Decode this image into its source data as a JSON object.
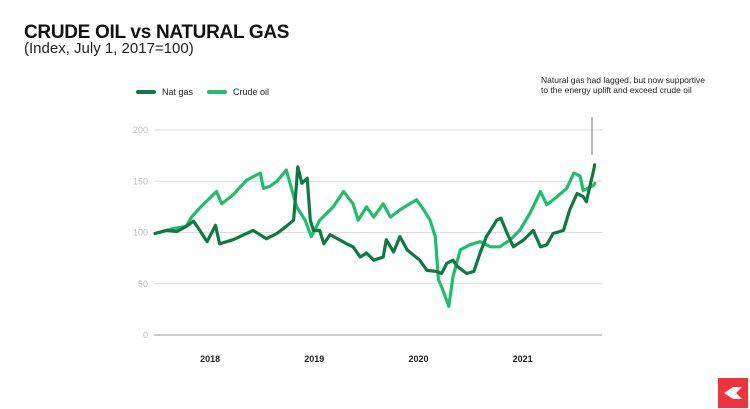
{
  "title": "CRUDE OIL vs NATURAL GAS",
  "subtitle": "(Index, July 1, 2017=100)",
  "annotation": "Natural gas had lagged, but now supportive to the energy uplift and exceed crude oil",
  "chart_data": {
    "type": "line",
    "title": "CRUDE OIL vs NATURAL GAS",
    "subtitle": "(Index, July 1, 2017=100)",
    "xlabel": "",
    "ylabel": "",
    "xlim": [
      2017.5,
      2021.8
    ],
    "ylim": [
      0,
      200
    ],
    "yticks": [
      0,
      50,
      100,
      150,
      200
    ],
    "xticks": [
      {
        "value": 2018,
        "label": "2018"
      },
      {
        "value": 2019,
        "label": "2019"
      },
      {
        "value": 2020,
        "label": "2020"
      },
      {
        "value": 2021,
        "label": "2021"
      }
    ],
    "grid": "horizontal",
    "legend": "top-left",
    "series": [
      {
        "name": "Nat gas",
        "color": "#0e7a42",
        "points": [
          [
            2017.51,
            99
          ],
          [
            2017.62,
            102
          ],
          [
            2017.72,
            101
          ],
          [
            2017.81,
            106
          ],
          [
            2017.88,
            111
          ],
          [
            2017.94,
            102
          ],
          [
            2018.01,
            91
          ],
          [
            2018.09,
            107
          ],
          [
            2018.13,
            89
          ],
          [
            2018.26,
            93
          ],
          [
            2018.45,
            102
          ],
          [
            2018.58,
            94
          ],
          [
            2018.68,
            99
          ],
          [
            2018.77,
            106
          ],
          [
            2018.84,
            112
          ],
          [
            2018.88,
            164
          ],
          [
            2018.92,
            148
          ],
          [
            2018.97,
            153
          ],
          [
            2019.0,
            112
          ],
          [
            2019.03,
            102
          ],
          [
            2019.09,
            102
          ],
          [
            2019.13,
            89
          ],
          [
            2019.19,
            98
          ],
          [
            2019.35,
            89
          ],
          [
            2019.41,
            86
          ],
          [
            2019.48,
            76
          ],
          [
            2019.54,
            80
          ],
          [
            2019.61,
            73
          ],
          [
            2019.7,
            76
          ],
          [
            2019.73,
            93
          ],
          [
            2019.8,
            81
          ],
          [
            2019.86,
            96
          ],
          [
            2019.93,
            83
          ],
          [
            2020.05,
            73
          ],
          [
            2020.12,
            63
          ],
          [
            2020.21,
            62
          ],
          [
            2020.26,
            60
          ],
          [
            2020.31,
            70
          ],
          [
            2020.37,
            73
          ],
          [
            2020.41,
            67
          ],
          [
            2020.5,
            60
          ],
          [
            2020.57,
            62
          ],
          [
            2020.63,
            80
          ],
          [
            2020.69,
            96
          ],
          [
            2020.79,
            112
          ],
          [
            2020.83,
            114
          ],
          [
            2020.89,
            99
          ],
          [
            2020.95,
            86
          ],
          [
            2021.05,
            93
          ],
          [
            2021.14,
            102
          ],
          [
            2021.21,
            86
          ],
          [
            2021.27,
            88
          ],
          [
            2021.33,
            99
          ],
          [
            2021.43,
            102
          ],
          [
            2021.49,
            122
          ],
          [
            2021.56,
            138
          ],
          [
            2021.62,
            135
          ],
          [
            2021.65,
            130
          ],
          [
            2021.69,
            148
          ],
          [
            2021.72,
            161
          ],
          [
            2021.73,
            166
          ]
        ]
      },
      {
        "name": "Crude oil",
        "color": "#1dbf6c",
        "points": [
          [
            2017.51,
            99
          ],
          [
            2017.69,
            104
          ],
          [
            2017.81,
            106
          ],
          [
            2017.86,
            115
          ],
          [
            2017.94,
            124
          ],
          [
            2018.1,
            140
          ],
          [
            2018.15,
            128
          ],
          [
            2018.26,
            137
          ],
          [
            2018.39,
            151
          ],
          [
            2018.52,
            158
          ],
          [
            2018.55,
            143
          ],
          [
            2018.61,
            145
          ],
          [
            2018.68,
            150
          ],
          [
            2018.77,
            161
          ],
          [
            2018.87,
            125
          ],
          [
            2018.95,
            112
          ],
          [
            2019.01,
            96
          ],
          [
            2019.09,
            112
          ],
          [
            2019.22,
            125
          ],
          [
            2019.32,
            140
          ],
          [
            2019.41,
            128
          ],
          [
            2019.46,
            112
          ],
          [
            2019.54,
            125
          ],
          [
            2019.61,
            115
          ],
          [
            2019.7,
            128
          ],
          [
            2019.77,
            115
          ],
          [
            2019.86,
            122
          ],
          [
            2020.02,
            132
          ],
          [
            2020.09,
            122
          ],
          [
            2020.15,
            112
          ],
          [
            2020.2,
            96
          ],
          [
            2020.23,
            54
          ],
          [
            2020.26,
            47
          ],
          [
            2020.33,
            28
          ],
          [
            2020.37,
            57
          ],
          [
            2020.44,
            83
          ],
          [
            2020.53,
            88
          ],
          [
            2020.63,
            91
          ],
          [
            2020.73,
            86
          ],
          [
            2020.82,
            86
          ],
          [
            2020.92,
            93
          ],
          [
            2021.01,
            102
          ],
          [
            2021.11,
            119
          ],
          [
            2021.21,
            140
          ],
          [
            2021.27,
            127
          ],
          [
            2021.37,
            135
          ],
          [
            2021.46,
            143
          ],
          [
            2021.53,
            158
          ],
          [
            2021.59,
            155
          ],
          [
            2021.62,
            141
          ],
          [
            2021.72,
            146
          ],
          [
            2021.73,
            148
          ]
        ]
      }
    ]
  }
}
